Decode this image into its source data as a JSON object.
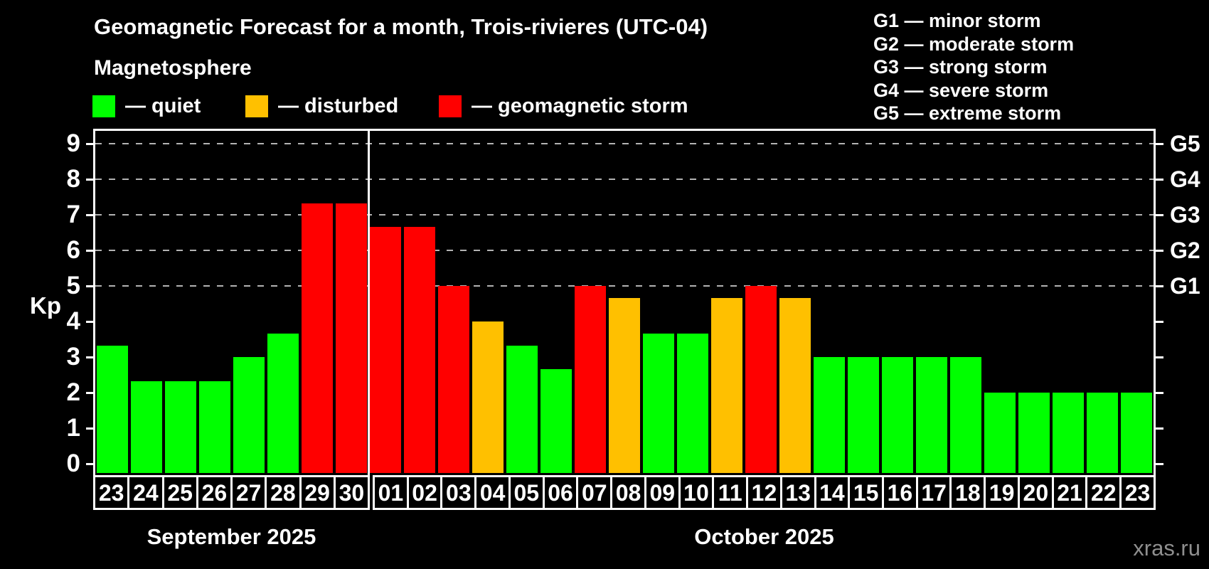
{
  "title": "Geomagnetic Forecast for a month, Trois-rivieres (UTC-04)",
  "subtitle": "Magnetosphere",
  "condition_legend": [
    {
      "key": "quiet",
      "label": "— quiet"
    },
    {
      "key": "disturbed",
      "label": "— disturbed"
    },
    {
      "key": "storm",
      "label": "— geomagnetic storm"
    }
  ],
  "storm_scale_legend": [
    "G1 — minor storm",
    "G2 — moderate storm",
    "G3 — strong storm",
    "G4 — severe storm",
    "G5 — extreme storm"
  ],
  "colors": {
    "quiet": "#00ff00",
    "disturbed": "#ffc000",
    "storm": "#ff0000",
    "axis": "#ffffff",
    "grid": "#b3b3b3",
    "background": "#000000",
    "watermark": "#8f8f8f"
  },
  "watermark": "xras.ru",
  "chart_data": {
    "type": "bar",
    "ylabel": "Kp",
    "ylim": [
      0,
      9
    ],
    "yticks": [
      0,
      1,
      2,
      3,
      4,
      5,
      6,
      7,
      8,
      9
    ],
    "gridlines_at": [
      5,
      6,
      7,
      8,
      9
    ],
    "grid": "dashed-horizontal",
    "legend_position": "top",
    "right_axis": [
      {
        "label": "G1",
        "value": 5
      },
      {
        "label": "G2",
        "value": 6
      },
      {
        "label": "G3",
        "value": 7
      },
      {
        "label": "G4",
        "value": 8
      },
      {
        "label": "G5",
        "value": 9
      }
    ],
    "months": [
      {
        "label": "September 2025",
        "bar_count": 8
      },
      {
        "label": "October 2025",
        "bar_count": 23
      }
    ],
    "bars": [
      {
        "day": "23",
        "kp": 3.33,
        "condition": "quiet"
      },
      {
        "day": "24",
        "kp": 2.33,
        "condition": "quiet"
      },
      {
        "day": "25",
        "kp": 2.33,
        "condition": "quiet"
      },
      {
        "day": "26",
        "kp": 2.33,
        "condition": "quiet"
      },
      {
        "day": "27",
        "kp": 3,
        "condition": "quiet"
      },
      {
        "day": "28",
        "kp": 3.67,
        "condition": "quiet"
      },
      {
        "day": "29",
        "kp": 7.33,
        "condition": "storm"
      },
      {
        "day": "30",
        "kp": 7.33,
        "condition": "storm"
      },
      {
        "day": "01",
        "kp": 6.67,
        "condition": "storm"
      },
      {
        "day": "02",
        "kp": 6.67,
        "condition": "storm"
      },
      {
        "day": "03",
        "kp": 5,
        "condition": "storm"
      },
      {
        "day": "04",
        "kp": 4,
        "condition": "disturbed"
      },
      {
        "day": "05",
        "kp": 3.33,
        "condition": "quiet"
      },
      {
        "day": "06",
        "kp": 2.67,
        "condition": "quiet"
      },
      {
        "day": "07",
        "kp": 5,
        "condition": "storm"
      },
      {
        "day": "08",
        "kp": 4.67,
        "condition": "disturbed"
      },
      {
        "day": "09",
        "kp": 3.67,
        "condition": "quiet"
      },
      {
        "day": "10",
        "kp": 3.67,
        "condition": "quiet"
      },
      {
        "day": "11",
        "kp": 4.67,
        "condition": "disturbed"
      },
      {
        "day": "12",
        "kp": 5,
        "condition": "storm"
      },
      {
        "day": "13",
        "kp": 4.67,
        "condition": "disturbed"
      },
      {
        "day": "14",
        "kp": 3,
        "condition": "quiet"
      },
      {
        "day": "15",
        "kp": 3,
        "condition": "quiet"
      },
      {
        "day": "16",
        "kp": 3,
        "condition": "quiet"
      },
      {
        "day": "17",
        "kp": 3,
        "condition": "quiet"
      },
      {
        "day": "18",
        "kp": 3,
        "condition": "quiet"
      },
      {
        "day": "19",
        "kp": 2,
        "condition": "quiet"
      },
      {
        "day": "20",
        "kp": 2,
        "condition": "quiet"
      },
      {
        "day": "21",
        "kp": 2,
        "condition": "quiet"
      },
      {
        "day": "22",
        "kp": 2,
        "condition": "quiet"
      },
      {
        "day": "23",
        "kp": 2,
        "condition": "quiet"
      }
    ]
  }
}
